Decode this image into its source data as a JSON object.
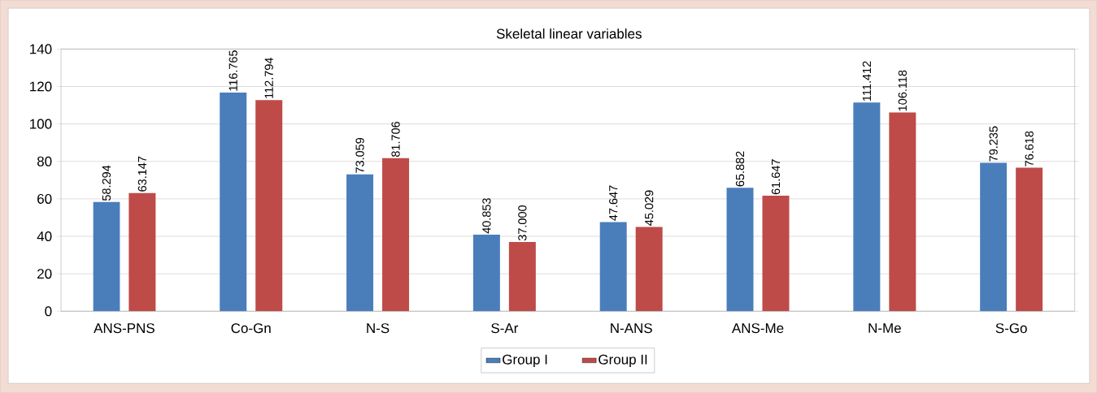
{
  "chart_data": {
    "type": "bar",
    "title": "Skeletal linear variables",
    "categories": [
      "ANS-PNS",
      "Co-Gn",
      "N-S",
      "S-Ar",
      "N-ANS",
      "ANS-Me",
      "N-Me",
      "S-Go"
    ],
    "series": [
      {
        "name": "Group I",
        "color": "#4a7ebb",
        "values": [
          58.294,
          116.765,
          73.059,
          40.853,
          47.647,
          65.882,
          111.412,
          79.235
        ],
        "value_labels": [
          "58.294",
          "116.765",
          "73.059",
          "40.853",
          "47.647",
          "65.882",
          "111.412",
          "79.235"
        ]
      },
      {
        "name": "Group II",
        "color": "#be4b48",
        "values": [
          63.147,
          112.794,
          81.706,
          37.0,
          45.029,
          61.647,
          106.118,
          76.618
        ],
        "value_labels": [
          "63.147",
          "112.794",
          "81.706",
          "37.000",
          "45.029",
          "61.647",
          "106.118",
          "76.618"
        ]
      }
    ],
    "ylim": [
      0,
      140
    ],
    "yticks": [
      0,
      20,
      40,
      60,
      80,
      100,
      120,
      140
    ],
    "grid": "y",
    "legend": "bottom"
  }
}
